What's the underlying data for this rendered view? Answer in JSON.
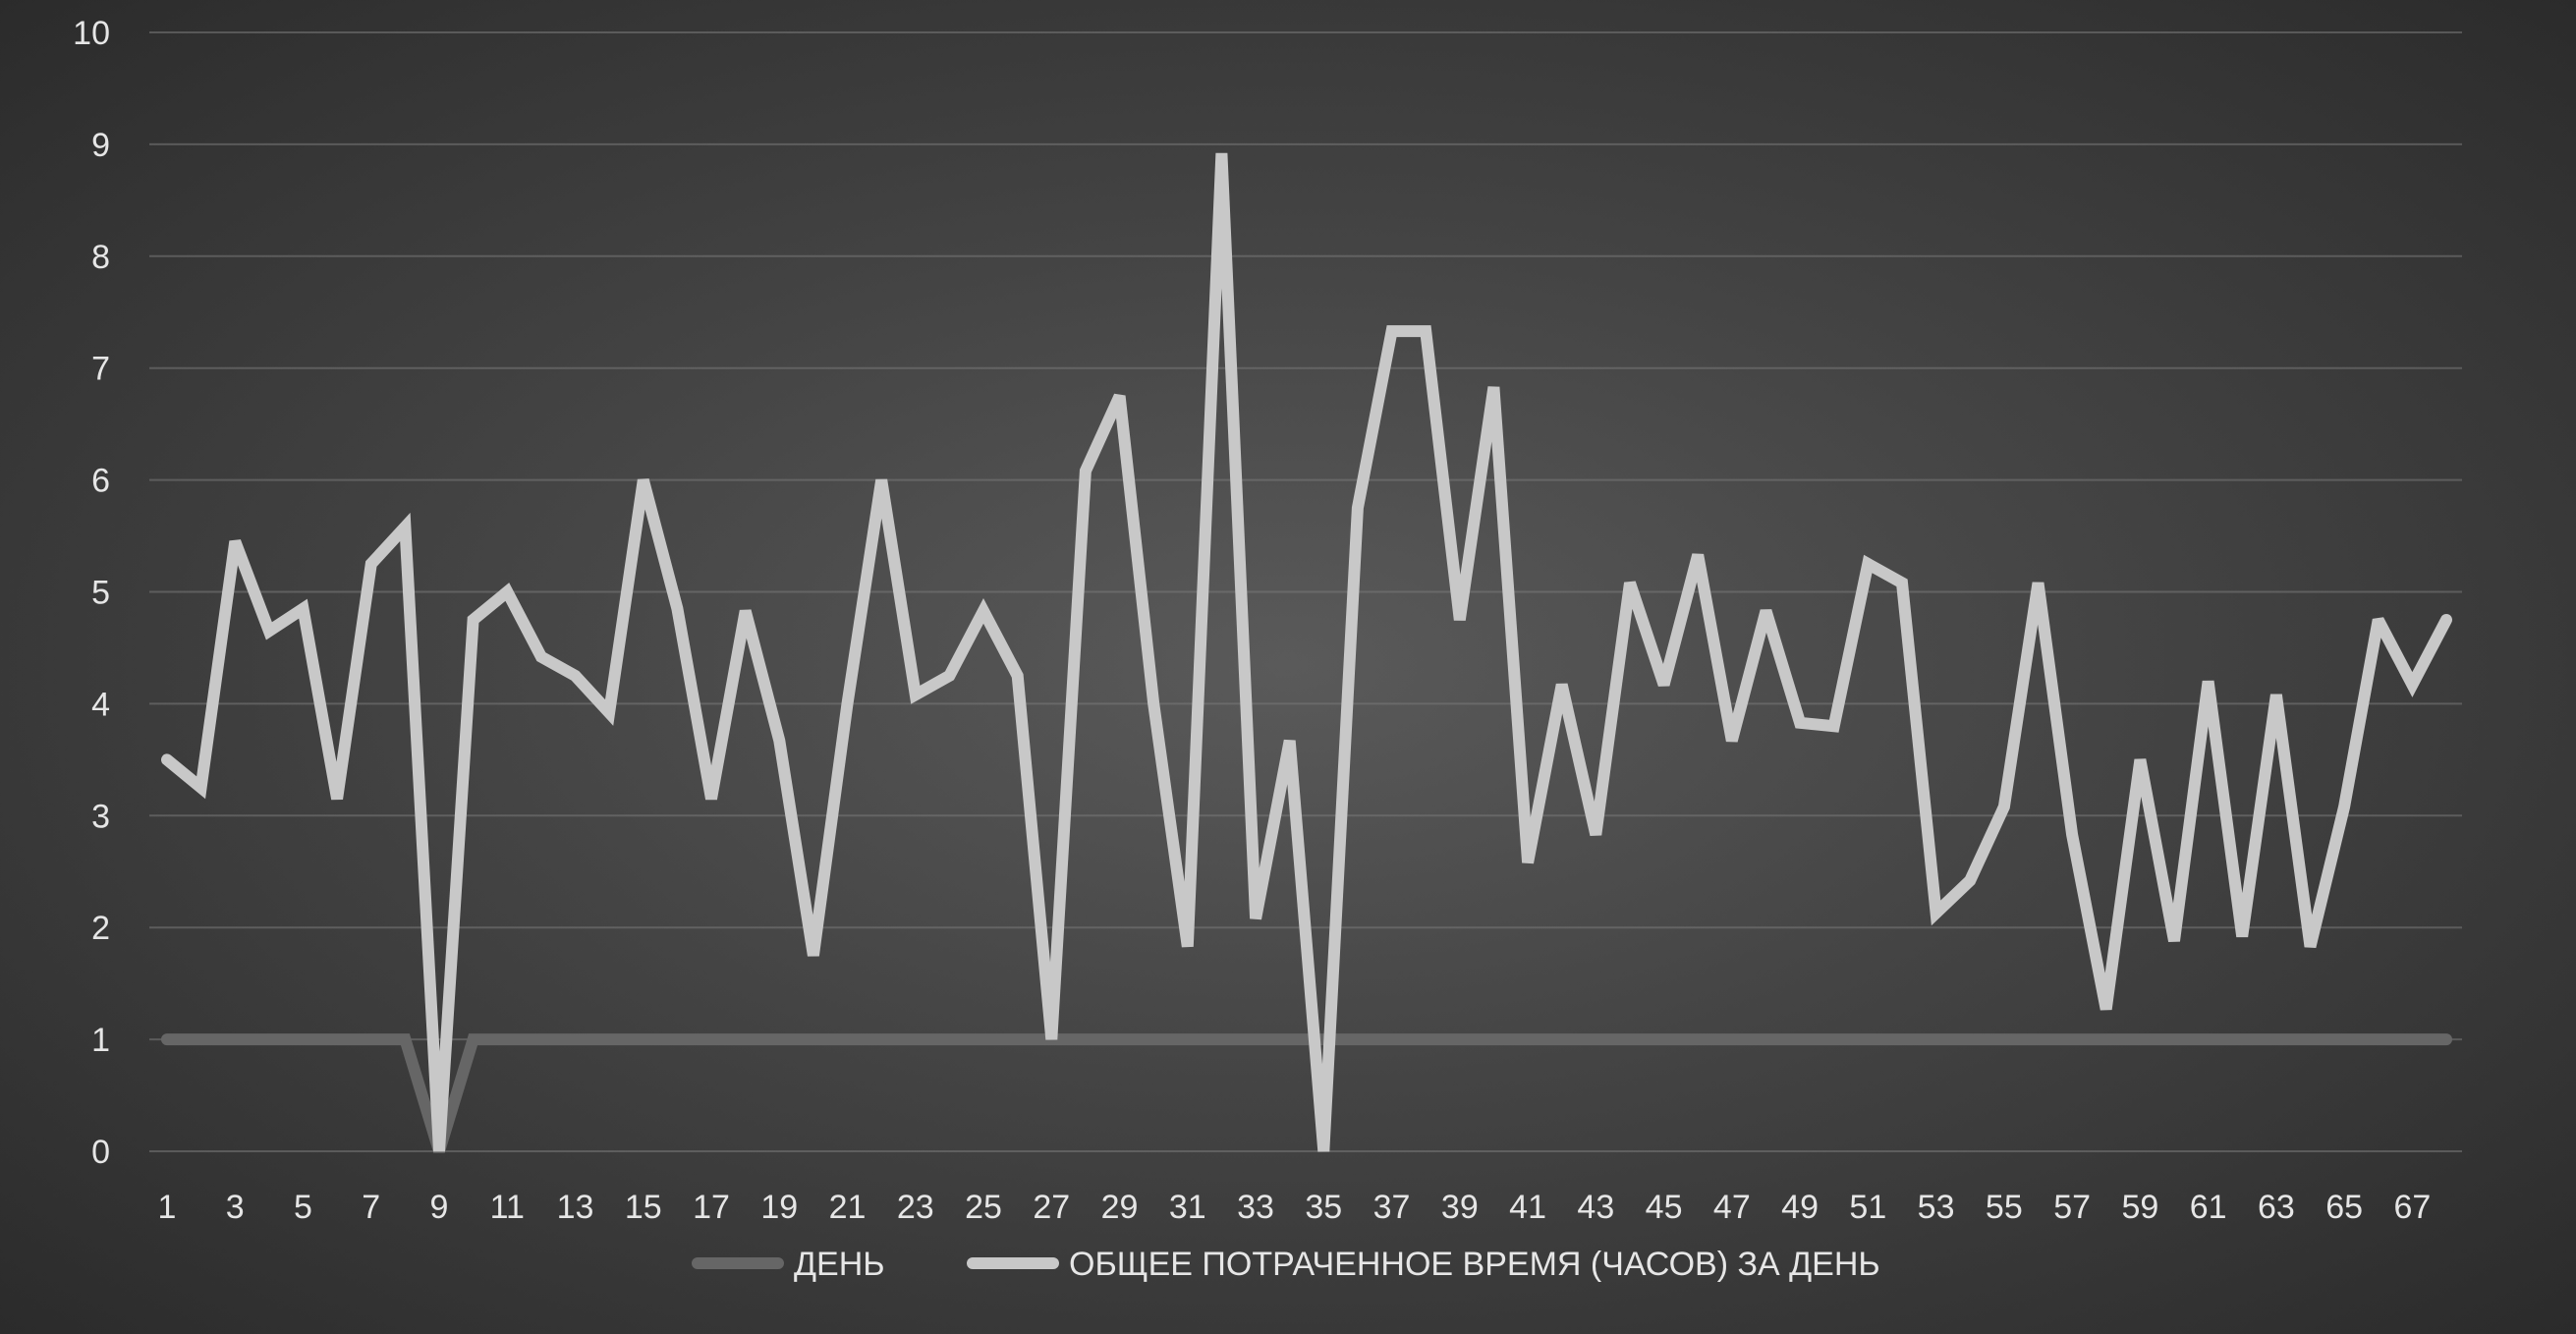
{
  "chart_data": {
    "type": "line",
    "title": "",
    "xlabel": "",
    "ylabel": "",
    "ylim": [
      0,
      10
    ],
    "yticks": [
      0,
      1,
      2,
      3,
      4,
      5,
      6,
      7,
      8,
      9,
      10
    ],
    "x": [
      1,
      2,
      3,
      4,
      5,
      6,
      7,
      8,
      9,
      10,
      11,
      12,
      13,
      14,
      15,
      16,
      17,
      18,
      19,
      20,
      21,
      22,
      23,
      24,
      25,
      26,
      27,
      28,
      29,
      30,
      31,
      32,
      33,
      34,
      35,
      36,
      37,
      38,
      39,
      40,
      41,
      42,
      43,
      44,
      45,
      46,
      47,
      48,
      49,
      50,
      51,
      52,
      53,
      54,
      55,
      56,
      57,
      58,
      59,
      60,
      61,
      62,
      63,
      64,
      65,
      66,
      67,
      68
    ],
    "xtick_labels": [
      "1",
      "3",
      "5",
      "7",
      "9",
      "11",
      "13",
      "15",
      "17",
      "19",
      "21",
      "23",
      "25",
      "27",
      "29",
      "31",
      "33",
      "35",
      "37",
      "39",
      "41",
      "43",
      "45",
      "47",
      "49",
      "51",
      "53",
      "55",
      "57",
      "59",
      "61",
      "63",
      "65",
      "67"
    ],
    "grid": true,
    "legend_position": "bottom",
    "series": [
      {
        "name": "ДЕНЬ",
        "color": "#666666",
        "values": [
          1,
          1,
          1,
          1,
          1,
          1,
          1,
          1,
          0,
          1,
          1,
          1,
          1,
          1,
          1,
          1,
          1,
          1,
          1,
          1,
          1,
          1,
          1,
          1,
          1,
          1,
          1,
          1,
          1,
          1,
          1,
          1,
          1,
          1,
          1,
          1,
          1,
          1,
          1,
          1,
          1,
          1,
          1,
          1,
          1,
          1,
          1,
          1,
          1,
          1,
          1,
          1,
          1,
          1,
          1,
          1,
          1,
          1,
          1,
          1,
          1,
          1,
          1,
          1,
          1,
          1,
          1,
          1
        ]
      },
      {
        "name": "ОБЩЕЕ ПОТРАЧЕННОЕ ВРЕМЯ (ЧАСОВ) ЗА ДЕНЬ",
        "color": "#c8c8c8",
        "values": [
          3.5,
          3.25,
          5.45,
          4.65,
          4.85,
          3.15,
          5.25,
          5.58,
          0,
          4.75,
          5,
          4.42,
          4.25,
          3.92,
          6,
          4.85,
          3.15,
          4.83,
          3.67,
          1.75,
          4,
          6,
          4.08,
          4.25,
          4.83,
          4.25,
          1,
          6.08,
          6.75,
          4,
          1.83,
          8.92,
          2.08,
          3.67,
          0,
          5.75,
          7.33,
          7.33,
          4.75,
          6.83,
          2.58,
          4.17,
          2.83,
          5.08,
          4.17,
          5.33,
          3.67,
          4.83,
          3.83,
          3.8,
          5.25,
          5.08,
          2.13,
          2.42,
          3.08,
          5.08,
          2.83,
          1.27,
          3.5,
          1.88,
          4.2,
          1.92,
          4.08,
          1.83,
          3.08,
          4.75,
          4.17,
          4.75
        ]
      }
    ]
  }
}
